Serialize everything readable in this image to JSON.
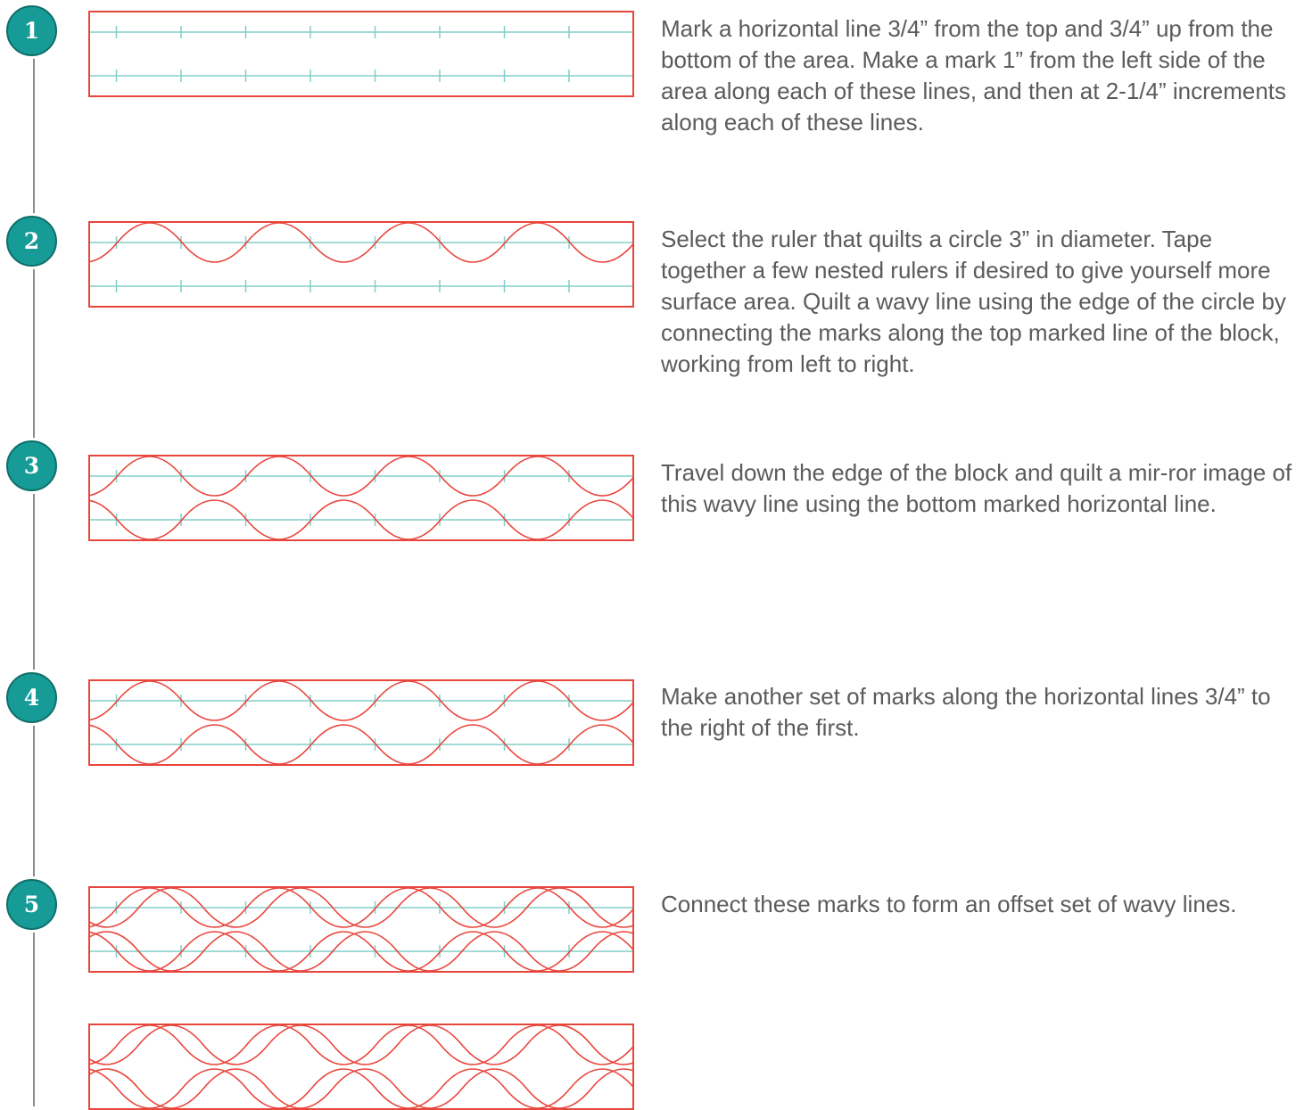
{
  "colors": {
    "badge": "#179b96",
    "border": "#e8453c",
    "guide": "#80cfc9",
    "timeline": "#8c8c8c",
    "text": "#5b5b5b"
  },
  "steps": [
    {
      "number": "1",
      "text": "Mark a horizontal line 3/4” from the top and 3/4”  up from the bottom of the area. Make a mark 1” from the left side of the area along each of these lines, and then at 2-1/4” increments along each of these lines.",
      "diagram": {
        "top_waves": false,
        "bottom_waves": false,
        "offset_waves": false,
        "guides": true
      }
    },
    {
      "number": "2",
      "text": "Select the ruler that quilts a circle 3” in diameter. Tape together a few nested rulers if desired to give yourself more surface area. Quilt a wavy line using the edge of the circle by connecting the marks along the top marked line of the block, working from left to right.",
      "diagram": {
        "top_waves": true,
        "bottom_waves": false,
        "offset_waves": false,
        "guides": true
      }
    },
    {
      "number": "3",
      "text": "Travel down the edge of the block and quilt a mir-ror image of this wavy line using the bottom marked horizontal line.",
      "diagram": {
        "top_waves": true,
        "bottom_waves": true,
        "offset_waves": false,
        "guides": true
      }
    },
    {
      "number": "4",
      "text": "Make another set of marks along the horizontal lines 3/4” to the right of the first.",
      "diagram": {
        "top_waves": true,
        "bottom_waves": true,
        "offset_waves": false,
        "guides": true
      }
    },
    {
      "number": "5",
      "text": "Connect these marks to form an offset set of wavy lines.",
      "diagram": {
        "top_waves": true,
        "bottom_waves": true,
        "offset_waves": true,
        "guides": true
      }
    }
  ],
  "final_diagram": {
    "top_waves": true,
    "bottom_waves": true,
    "offset_waves": true,
    "guides": false
  }
}
